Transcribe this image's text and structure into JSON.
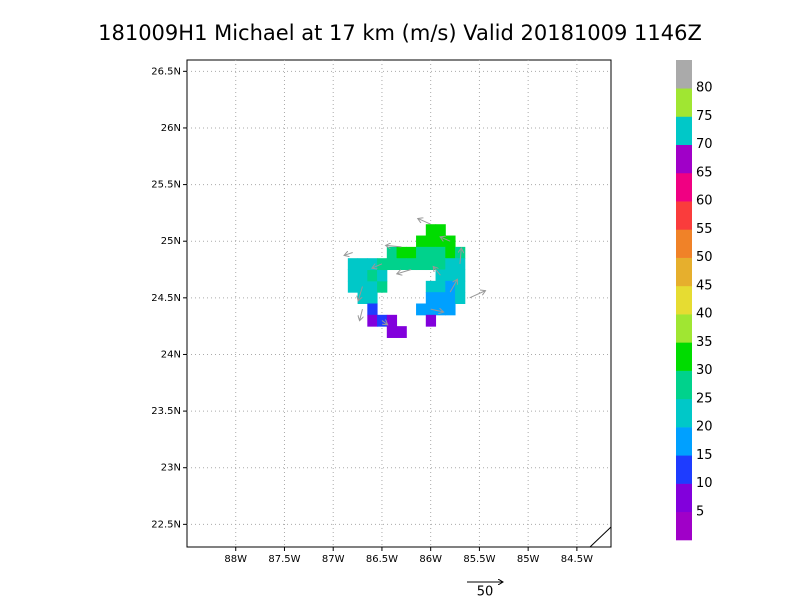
{
  "chart_data": {
    "type": "wind-map",
    "title": "181009H1 Michael at 17 km (m/s) Valid 20181009 1146Z",
    "xlim": [
      -88.5,
      -84.15
    ],
    "ylim": [
      22.3,
      26.6
    ],
    "xticks": [
      {
        "value": -88,
        "label": "88W"
      },
      {
        "value": -87.5,
        "label": "87.5W"
      },
      {
        "value": -87,
        "label": "87W"
      },
      {
        "value": -86.5,
        "label": "86.5W"
      },
      {
        "value": -86,
        "label": "86W"
      },
      {
        "value": -85.5,
        "label": "85.5W"
      },
      {
        "value": -85,
        "label": "85W"
      },
      {
        "value": -84.5,
        "label": "84.5W"
      }
    ],
    "yticks": [
      {
        "value": 22.5,
        "label": "22.5N"
      },
      {
        "value": 23,
        "label": "23N"
      },
      {
        "value": 23.5,
        "label": "23.5N"
      },
      {
        "value": 24,
        "label": "24N"
      },
      {
        "value": 24.5,
        "label": "24.5N"
      },
      {
        "value": 25,
        "label": "25N"
      },
      {
        "value": 25.5,
        "label": "25.5N"
      },
      {
        "value": 26,
        "label": "26N"
      },
      {
        "value": 26.5,
        "label": "26.5N"
      }
    ],
    "grid": true,
    "levels": [
      5,
      10,
      15,
      20,
      25,
      30,
      35,
      40,
      45,
      50,
      55,
      60,
      65,
      70,
      75,
      80
    ],
    "colors": [
      "#a000c8",
      "#8200dc",
      "#1e3cff",
      "#00a0ff",
      "#00c8c8",
      "#00d28c",
      "#00dc00",
      "#a0e632",
      "#e6dc32",
      "#e6af2d",
      "#f08228",
      "#fa3c3c",
      "#f00082",
      "#a000c8",
      "#00c8c8",
      "#a0e632",
      "#aaaaaa"
    ],
    "cells": [
      [
        -86.8,
        24.6,
        22
      ],
      [
        -86.7,
        24.6,
        23
      ],
      [
        -86.6,
        24.6,
        24
      ],
      [
        -86.5,
        24.6,
        25
      ],
      [
        -86.8,
        24.7,
        23
      ],
      [
        -86.7,
        24.7,
        24
      ],
      [
        -86.6,
        24.7,
        25
      ],
      [
        -86.5,
        24.7,
        24
      ],
      [
        -86.8,
        24.8,
        22
      ],
      [
        -86.7,
        24.8,
        23
      ],
      [
        -86.6,
        24.8,
        24
      ],
      [
        -86.5,
        24.8,
        25
      ],
      [
        -86.7,
        24.5,
        22
      ],
      [
        -86.6,
        24.5,
        20
      ],
      [
        -86.4,
        24.9,
        28
      ],
      [
        -86.3,
        24.9,
        32
      ],
      [
        -86.2,
        24.9,
        31
      ],
      [
        -86.4,
        24.8,
        26
      ],
      [
        -86.3,
        24.8,
        27
      ],
      [
        -86.2,
        24.8,
        28
      ],
      [
        -86.1,
        24.8,
        29
      ],
      [
        -86.0,
        25.1,
        33
      ],
      [
        -85.9,
        25.1,
        32
      ],
      [
        -86.1,
        25.0,
        31
      ],
      [
        -86.0,
        25.0,
        33
      ],
      [
        -85.9,
        25.0,
        32
      ],
      [
        -85.8,
        25.0,
        30
      ],
      [
        -86.1,
        24.9,
        29
      ],
      [
        -86.0,
        24.9,
        28
      ],
      [
        -85.9,
        24.9,
        27
      ],
      [
        -85.8,
        24.9,
        30
      ],
      [
        -85.7,
        24.9,
        26
      ],
      [
        -86.0,
        24.8,
        27
      ],
      [
        -85.9,
        24.8,
        26
      ],
      [
        -85.8,
        24.8,
        24
      ],
      [
        -85.7,
        24.8,
        23
      ],
      [
        -85.9,
        24.7,
        22
      ],
      [
        -85.8,
        24.7,
        21
      ],
      [
        -85.7,
        24.7,
        24
      ],
      [
        -86.0,
        24.6,
        23
      ],
      [
        -85.9,
        24.6,
        20
      ],
      [
        -85.8,
        24.6,
        19
      ],
      [
        -85.7,
        24.6,
        22
      ],
      [
        -86.0,
        24.5,
        18
      ],
      [
        -85.9,
        24.5,
        17
      ],
      [
        -85.8,
        24.5,
        19
      ],
      [
        -85.7,
        24.5,
        20
      ],
      [
        -86.1,
        24.4,
        17
      ],
      [
        -86.0,
        24.4,
        16
      ],
      [
        -85.9,
        24.4,
        15
      ],
      [
        -85.8,
        24.4,
        18
      ],
      [
        -86.0,
        24.3,
        9
      ],
      [
        -86.6,
        24.4,
        14
      ],
      [
        -86.6,
        24.3,
        8
      ],
      [
        -86.5,
        24.3,
        12
      ],
      [
        -86.4,
        24.3,
        7
      ],
      [
        -86.4,
        24.2,
        8
      ],
      [
        -86.3,
        24.2,
        9
      ]
    ],
    "vectors": [
      [
        -86.8,
        24.9,
        -12,
        -4
      ],
      [
        -86.7,
        24.6,
        -6,
        -20
      ],
      [
        -86.5,
        24.8,
        -14,
        -6
      ],
      [
        -86.3,
        24.95,
        -22,
        2
      ],
      [
        -86.0,
        25.15,
        -18,
        8
      ],
      [
        -85.8,
        25.0,
        -14,
        6
      ],
      [
        -85.7,
        24.8,
        2,
        22
      ],
      [
        -85.8,
        24.55,
        10,
        18
      ],
      [
        -85.6,
        24.5,
        22,
        10
      ],
      [
        -86.0,
        24.4,
        18,
        -4
      ],
      [
        -86.2,
        24.75,
        -20,
        -6
      ],
      [
        -86.5,
        24.3,
        8,
        -6
      ],
      [
        -86.7,
        24.4,
        -4,
        -16
      ],
      [
        -85.9,
        24.7,
        -10,
        12
      ]
    ],
    "reference_vector": 50
  }
}
